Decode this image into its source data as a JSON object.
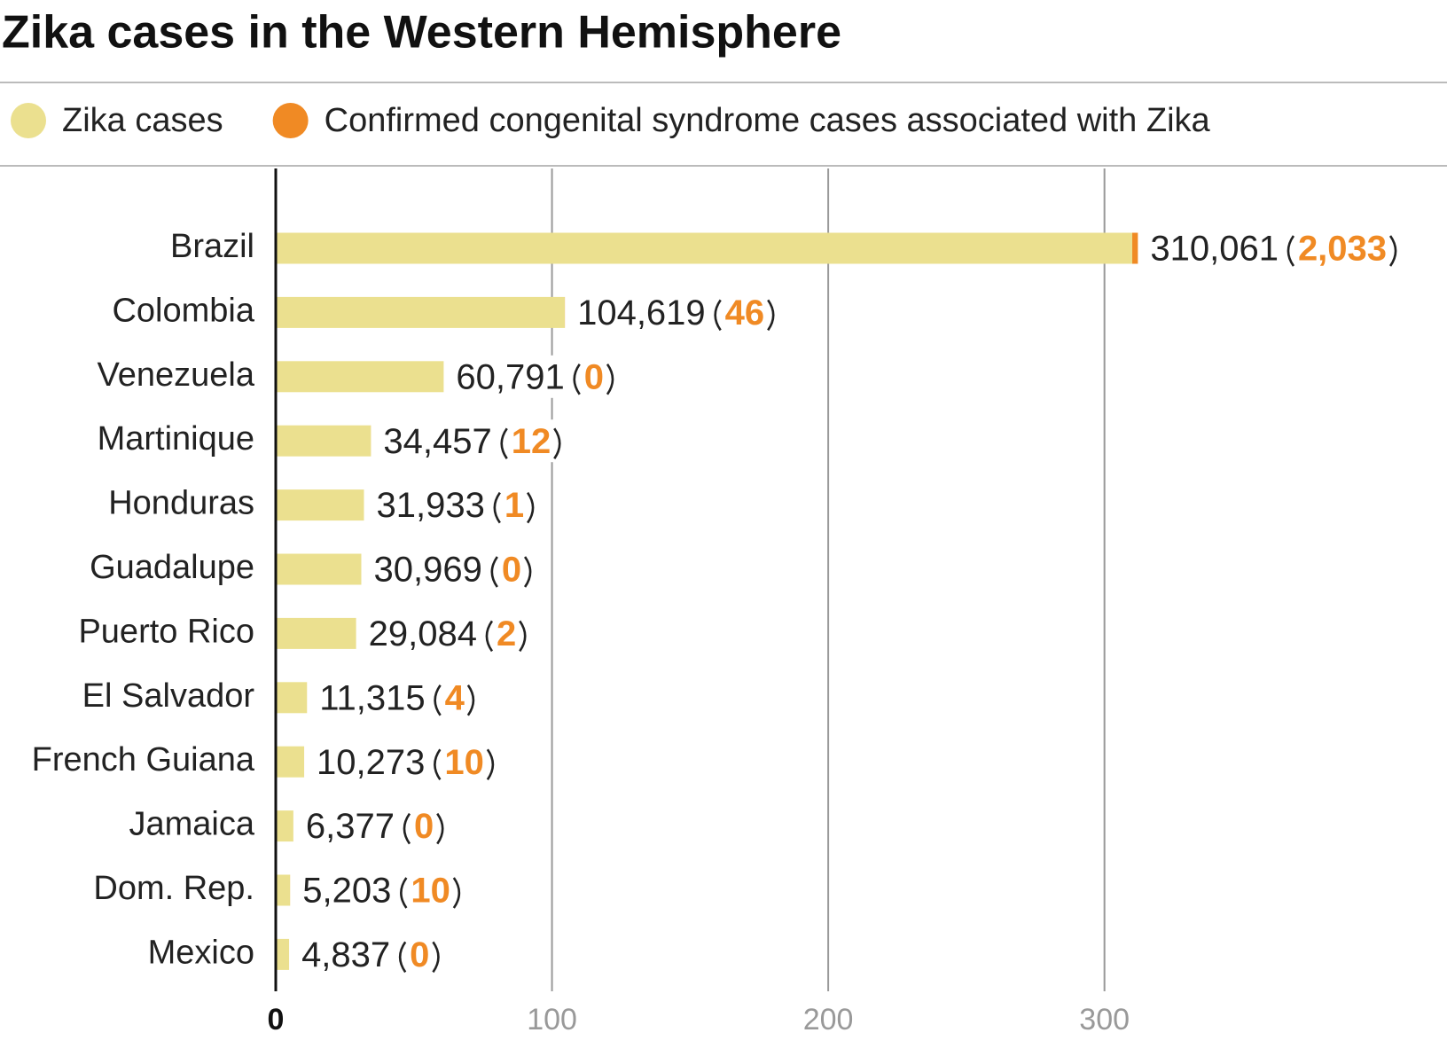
{
  "chart_data": {
    "type": "bar",
    "orientation": "horizontal",
    "stacked": true,
    "title": "Zika cases in the Western Hemisphere",
    "categories": [
      "Brazil",
      "Colombia",
      "Venezuela",
      "Martinique",
      "Honduras",
      "Guadalupe",
      "Puerto Rico",
      "El Salvador",
      "French Guiana",
      "Jamaica",
      "Dom. Rep.",
      "Mexico"
    ],
    "series": [
      {
        "name": "Zika cases",
        "color": "#ebe08f",
        "values": [
          310.061,
          104.619,
          60.791,
          34.457,
          31.933,
          30.969,
          29.084,
          11.315,
          10.273,
          6.377,
          5.203,
          4.837
        ],
        "value_labels": [
          "310,061",
          "104,619",
          "60,791",
          "34,457",
          "31,933",
          "30,969",
          "29,084",
          "11,315",
          "10,273",
          "6,377",
          "5,203",
          "4,837"
        ]
      },
      {
        "name": "Confirmed congenital syndrome cases associated with Zika",
        "color": "#f08a24",
        "values": [
          2.033,
          0.046,
          0,
          0.012,
          0.001,
          0,
          0.002,
          0.004,
          0.01,
          0,
          0.01,
          0
        ],
        "value_labels": [
          "2,033",
          "46",
          "0",
          "12",
          "1",
          "0",
          "2",
          "4",
          "10",
          "0",
          "10",
          "0"
        ]
      }
    ],
    "xlim": [
      0,
      424
    ],
    "xticks": [
      0,
      100,
      200,
      300
    ],
    "grid": true,
    "legend": "top"
  }
}
